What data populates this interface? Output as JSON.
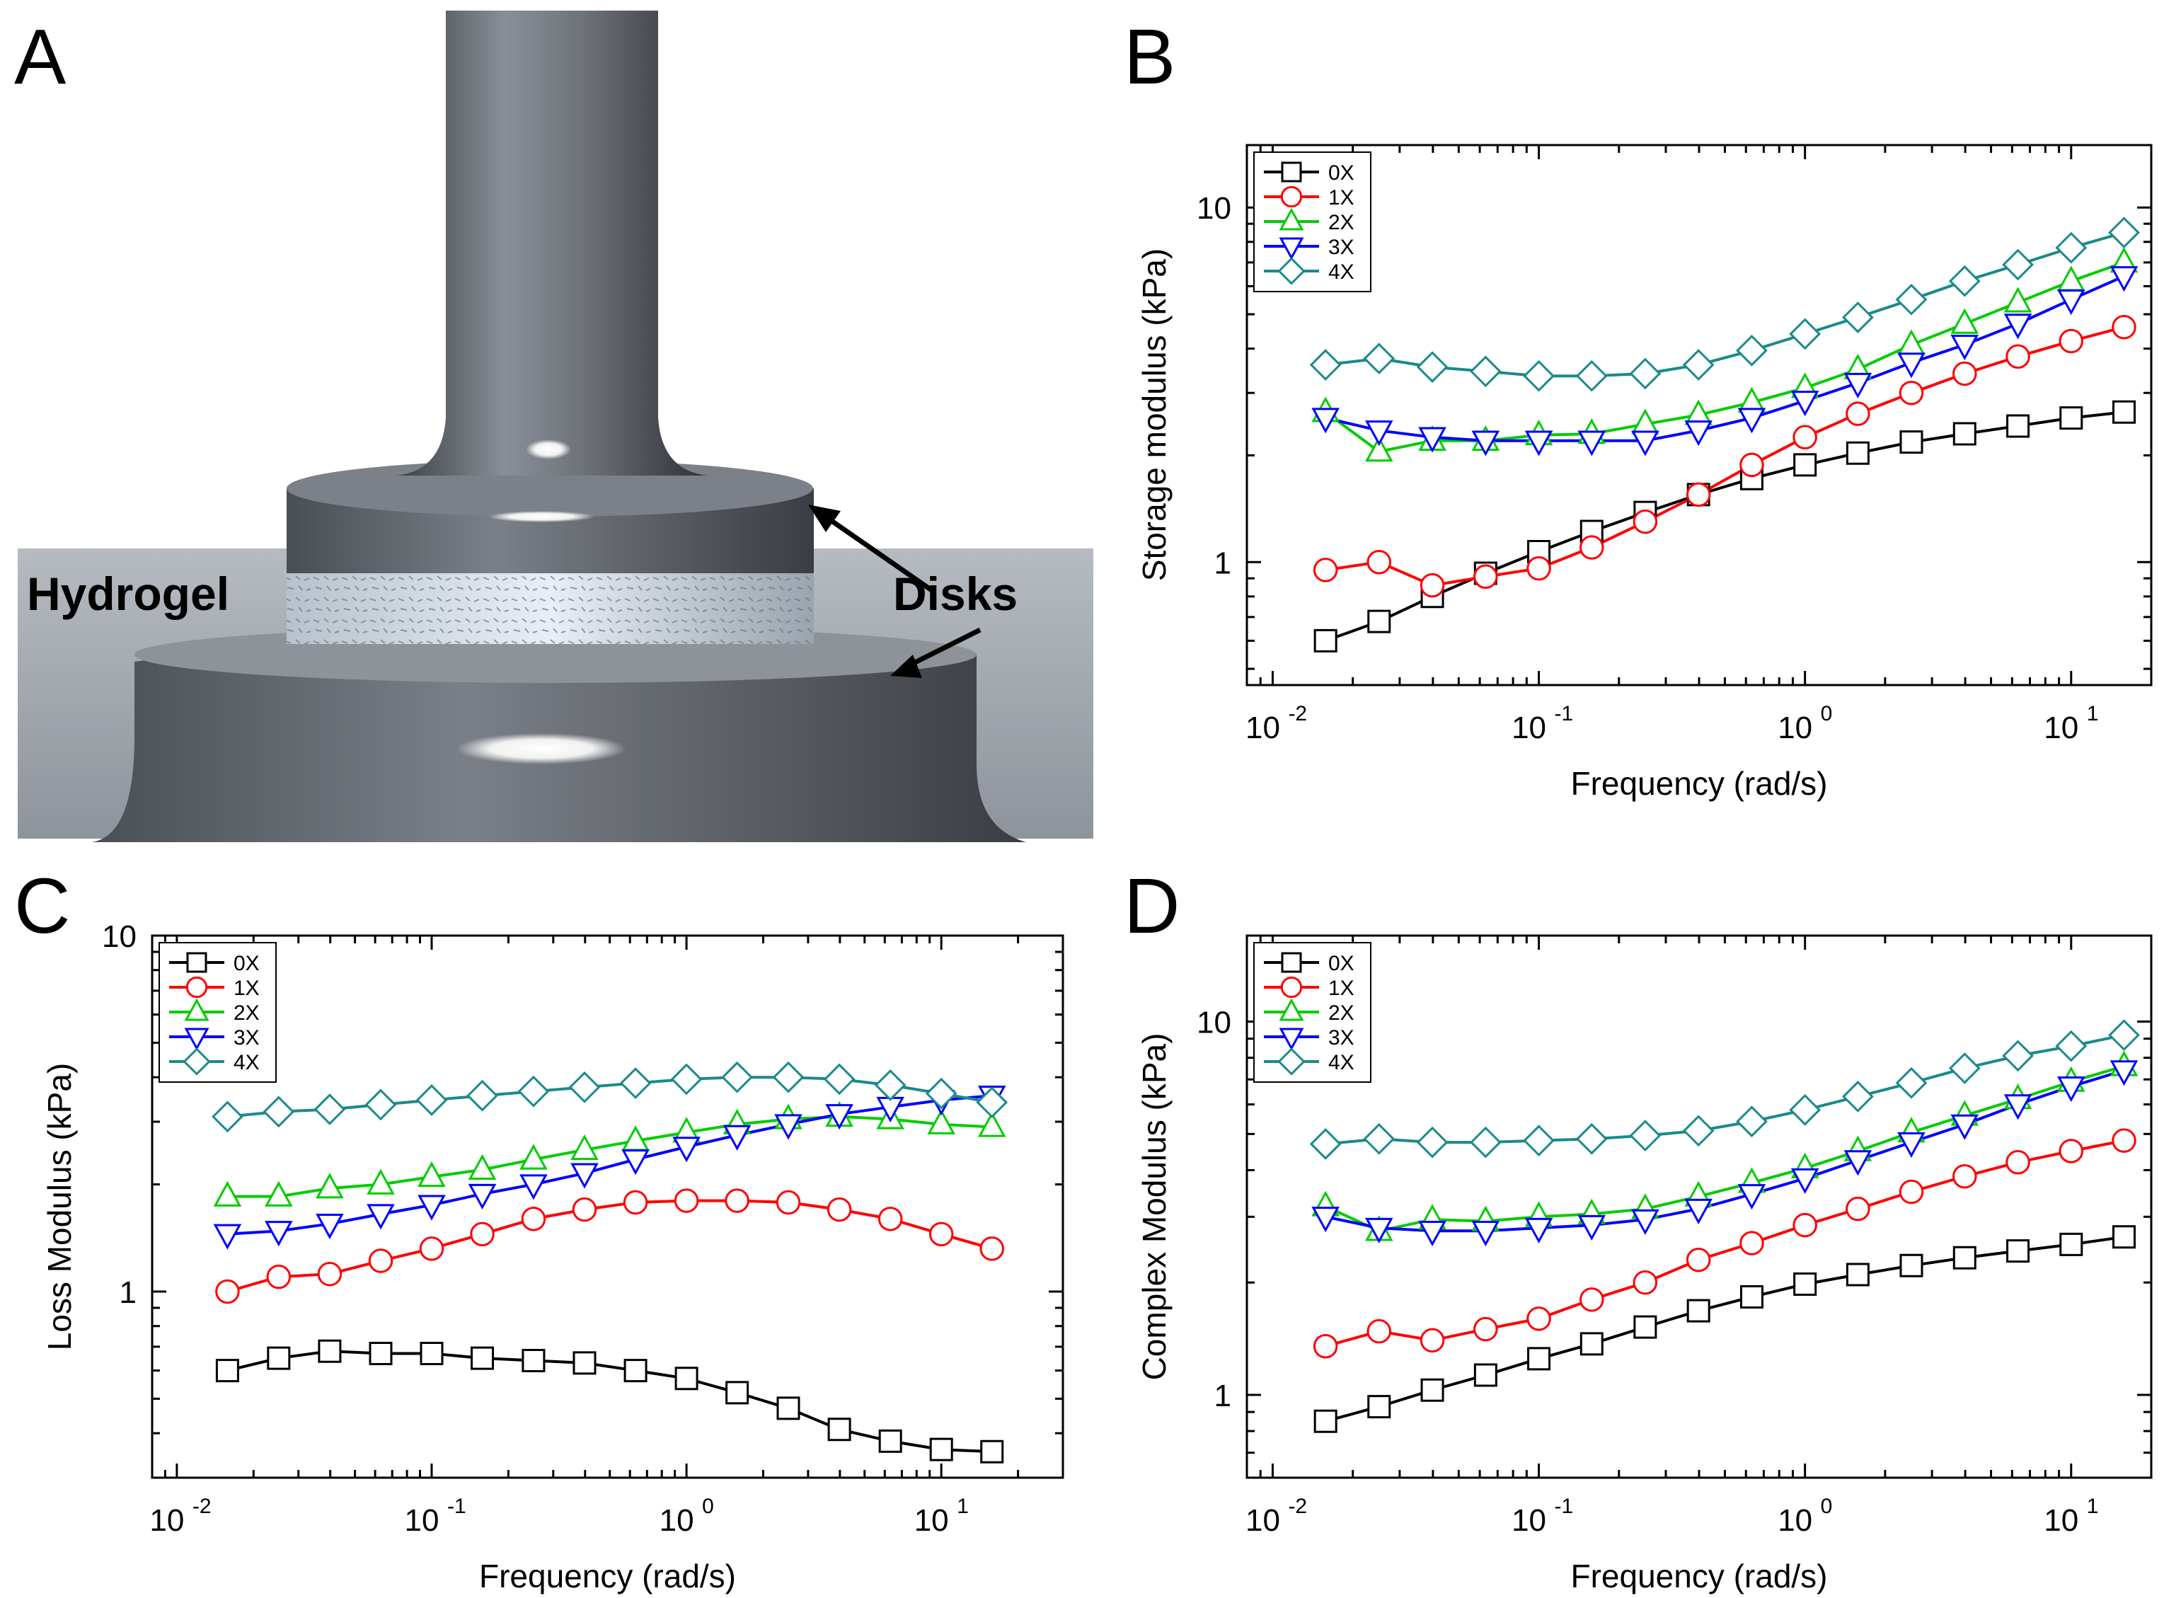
{
  "panel_labels": {
    "a": "A",
    "b": "B",
    "c": "C",
    "d": "D"
  },
  "illustration": {
    "hydrogel_label": "Hydrogel",
    "disks_label": "Disks"
  },
  "series_style": [
    {
      "name": "0X",
      "color": "#000000",
      "marker": "square"
    },
    {
      "name": "1X",
      "color": "#ff0000",
      "marker": "circle"
    },
    {
      "name": "2X",
      "color": "#00cc00",
      "marker": "triangle-up"
    },
    {
      "name": "3X",
      "color": "#0000ff",
      "marker": "triangle-down"
    },
    {
      "name": "4X",
      "color": "#1a8a8a",
      "marker": "diamond"
    }
  ],
  "chart_data": [
    {
      "type": "line",
      "title": "",
      "xlabel": "Frequency (rad/s)",
      "ylabel": "Storage modulus (kPa)",
      "xscale": "log",
      "yscale": "log",
      "xlim": [
        0.008,
        20
      ],
      "ylim": [
        0.45,
        15
      ],
      "xticks": [
        {
          "value": 0.01,
          "base": "10",
          "exp": "-2"
        },
        {
          "value": 0.1,
          "base": "10",
          "exp": "-1"
        },
        {
          "value": 1,
          "base": "10",
          "exp": "0"
        },
        {
          "value": 10,
          "base": "10",
          "exp": "1"
        }
      ],
      "yticks": [
        {
          "value": 1,
          "label": "1"
        },
        {
          "value": 10,
          "label": "10"
        }
      ],
      "legend": "top-left",
      "x": [
        0.0158,
        0.0251,
        0.0398,
        0.0631,
        0.1,
        0.158,
        0.251,
        0.398,
        0.631,
        1.0,
        1.58,
        2.51,
        3.98,
        6.31,
        10.0,
        15.8
      ],
      "series": [
        {
          "name": "0X",
          "values": [
            0.6,
            0.68,
            0.8,
            0.93,
            1.07,
            1.22,
            1.38,
            1.55,
            1.72,
            1.88,
            2.03,
            2.18,
            2.3,
            2.42,
            2.55,
            2.65
          ]
        },
        {
          "name": "1X",
          "values": [
            0.95,
            1.0,
            0.86,
            0.91,
            0.96,
            1.1,
            1.3,
            1.55,
            1.88,
            2.25,
            2.62,
            3.0,
            3.4,
            3.8,
            4.2,
            4.6
          ]
        },
        {
          "name": "2X",
          "values": [
            2.65,
            2.05,
            2.2,
            2.2,
            2.28,
            2.3,
            2.45,
            2.6,
            2.82,
            3.1,
            3.5,
            4.1,
            4.7,
            5.4,
            6.2,
            7.0
          ]
        },
        {
          "name": "3X",
          "values": [
            2.55,
            2.35,
            2.25,
            2.2,
            2.2,
            2.2,
            2.2,
            2.35,
            2.55,
            2.85,
            3.2,
            3.65,
            4.1,
            4.7,
            5.5,
            6.4
          ]
        },
        {
          "name": "4X",
          "values": [
            3.6,
            3.75,
            3.55,
            3.45,
            3.35,
            3.35,
            3.4,
            3.6,
            3.95,
            4.4,
            4.9,
            5.5,
            6.2,
            6.9,
            7.7,
            8.5
          ]
        }
      ]
    },
    {
      "type": "line",
      "title": "",
      "xlabel": "Frequency (rad/s)",
      "ylabel": "Loss Modulus (kPa)",
      "xscale": "log",
      "yscale": "log",
      "xlim": [
        0.008,
        30
      ],
      "ylim": [
        0.3,
        10
      ],
      "xticks": [
        {
          "value": 0.01,
          "base": "10",
          "exp": "-2"
        },
        {
          "value": 0.1,
          "base": "10",
          "exp": "-1"
        },
        {
          "value": 1,
          "base": "10",
          "exp": "0"
        },
        {
          "value": 10,
          "base": "10",
          "exp": "1"
        }
      ],
      "yticks": [
        {
          "value": 1,
          "label": "1"
        },
        {
          "value": 10,
          "label": "10"
        }
      ],
      "legend": "top-left",
      "x": [
        0.0158,
        0.0251,
        0.0398,
        0.0631,
        0.1,
        0.158,
        0.251,
        0.398,
        0.631,
        1.0,
        1.58,
        2.51,
        3.98,
        6.31,
        10.0,
        15.8
      ],
      "series": [
        {
          "name": "0X",
          "values": [
            0.6,
            0.65,
            0.68,
            0.67,
            0.67,
            0.65,
            0.64,
            0.63,
            0.6,
            0.57,
            0.52,
            0.47,
            0.41,
            0.38,
            0.36,
            0.355
          ]
        },
        {
          "name": "1X",
          "values": [
            1.0,
            1.1,
            1.12,
            1.22,
            1.32,
            1.45,
            1.6,
            1.7,
            1.78,
            1.8,
            1.8,
            1.78,
            1.7,
            1.6,
            1.45,
            1.32
          ]
        },
        {
          "name": "2X",
          "values": [
            1.85,
            1.85,
            1.95,
            2.0,
            2.1,
            2.2,
            2.35,
            2.5,
            2.65,
            2.8,
            2.95,
            3.05,
            3.1,
            3.05,
            2.95,
            2.9
          ]
        },
        {
          "name": "3X",
          "values": [
            1.45,
            1.48,
            1.55,
            1.65,
            1.75,
            1.88,
            2.0,
            2.15,
            2.35,
            2.55,
            2.75,
            2.95,
            3.15,
            3.3,
            3.45,
            3.55
          ]
        },
        {
          "name": "4X",
          "values": [
            3.1,
            3.2,
            3.25,
            3.35,
            3.45,
            3.55,
            3.65,
            3.75,
            3.85,
            3.95,
            4.0,
            4.0,
            3.95,
            3.8,
            3.6,
            3.4
          ]
        }
      ]
    },
    {
      "type": "line",
      "title": "",
      "xlabel": "Frequency (rad/s)",
      "ylabel": "Complex Modulus (kPa)",
      "xscale": "log",
      "yscale": "log",
      "xlim": [
        0.008,
        20
      ],
      "ylim": [
        0.6,
        17
      ],
      "xticks": [
        {
          "value": 0.01,
          "base": "10",
          "exp": "-2"
        },
        {
          "value": 0.1,
          "base": "10",
          "exp": "-1"
        },
        {
          "value": 1,
          "base": "10",
          "exp": "0"
        },
        {
          "value": 10,
          "base": "10",
          "exp": "1"
        }
      ],
      "yticks": [
        {
          "value": 1,
          "label": "1"
        },
        {
          "value": 10,
          "label": "10"
        }
      ],
      "legend": "top-left",
      "x": [
        0.0158,
        0.0251,
        0.0398,
        0.0631,
        0.1,
        0.158,
        0.251,
        0.398,
        0.631,
        1.0,
        1.58,
        2.51,
        3.98,
        6.31,
        10.0,
        15.8
      ],
      "series": [
        {
          "name": "0X",
          "values": [
            0.85,
            0.93,
            1.03,
            1.13,
            1.25,
            1.37,
            1.52,
            1.68,
            1.83,
            1.98,
            2.1,
            2.22,
            2.33,
            2.43,
            2.53,
            2.65
          ]
        },
        {
          "name": "1X",
          "values": [
            1.35,
            1.48,
            1.4,
            1.5,
            1.6,
            1.8,
            2.0,
            2.3,
            2.55,
            2.85,
            3.15,
            3.5,
            3.85,
            4.2,
            4.5,
            4.8
          ]
        },
        {
          "name": "2X",
          "values": [
            3.2,
            2.75,
            2.95,
            2.92,
            3.0,
            3.05,
            3.15,
            3.4,
            3.7,
            4.05,
            4.5,
            5.05,
            5.6,
            6.2,
            6.9,
            7.6
          ]
        },
        {
          "name": "3X",
          "values": [
            3.0,
            2.8,
            2.75,
            2.75,
            2.8,
            2.85,
            2.95,
            3.15,
            3.45,
            3.8,
            4.25,
            4.75,
            5.3,
            6.0,
            6.7,
            7.4
          ]
        },
        {
          "name": "4X",
          "values": [
            4.7,
            4.85,
            4.75,
            4.75,
            4.8,
            4.85,
            4.95,
            5.1,
            5.4,
            5.8,
            6.3,
            6.85,
            7.5,
            8.1,
            8.6,
            9.2
          ]
        }
      ]
    }
  ]
}
